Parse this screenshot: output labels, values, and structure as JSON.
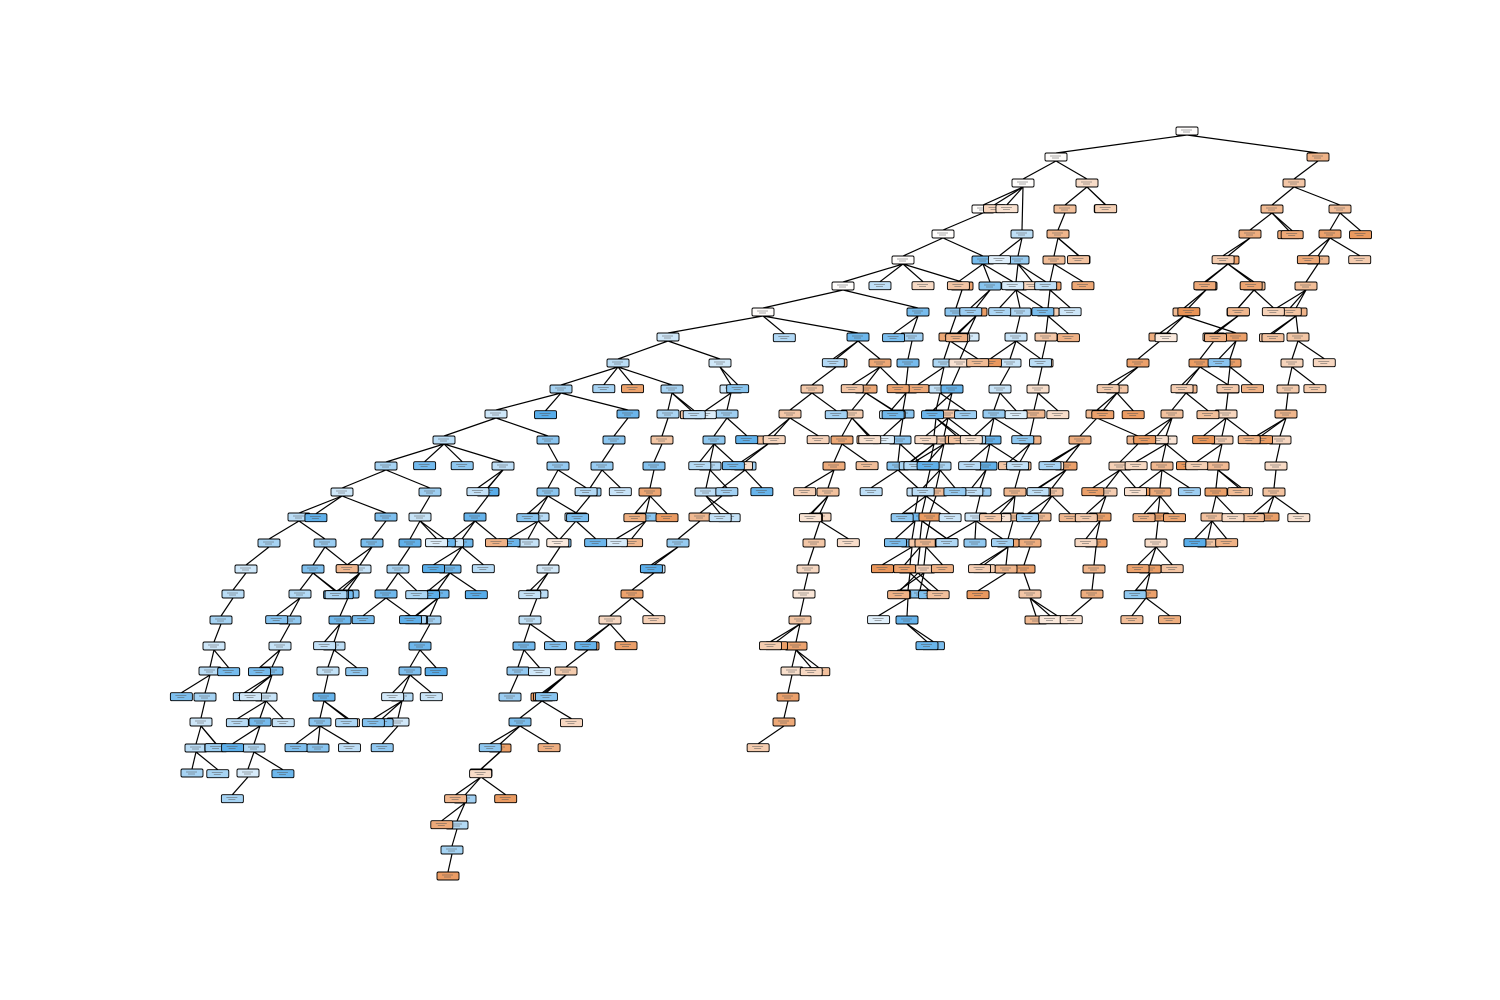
{
  "diagram": {
    "type": "decision-tree",
    "node_text_legible": false,
    "class_colors": {
      "class_a": "#e58139",
      "class_b": "#399de5",
      "mixed": "#ffffff"
    },
    "node_style": "filled rounded box, fill shade reflects class purity"
  }
}
